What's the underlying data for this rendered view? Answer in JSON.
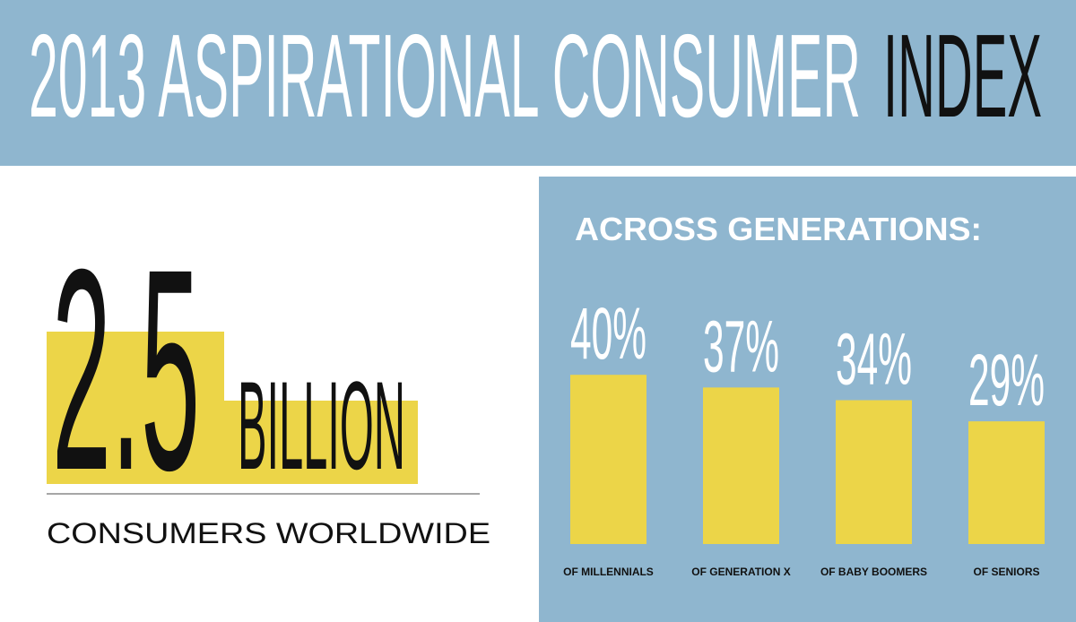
{
  "header": {
    "title_main": "2013 ASPIRATIONAL CONSUMER",
    "title_accent": "INDEX"
  },
  "stat": {
    "number": "2.5",
    "unit": "BILLION",
    "caption": "CONSUMERS WORLDWIDE"
  },
  "chart_data": {
    "type": "bar",
    "title": "ACROSS GENERATIONS:",
    "categories": [
      "OF MILLENNIALS",
      "OF GENERATION X",
      "OF BABY BOOMERS",
      "OF SENIORS"
    ],
    "values": [
      40,
      37,
      34,
      29
    ],
    "value_labels": [
      "40%",
      "37%",
      "34%",
      "29%"
    ],
    "color": "#ecd548"
  }
}
